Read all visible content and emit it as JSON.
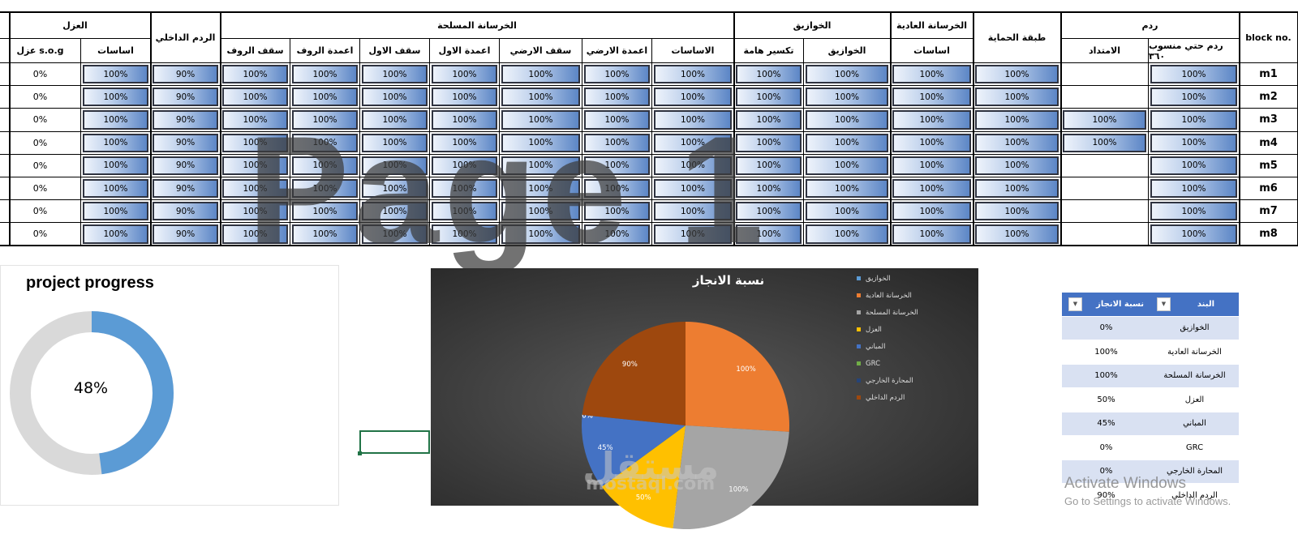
{
  "grid": {
    "groups": {
      "insulation": "العزل",
      "internal_backfill": "الردم الداخلي",
      "reinforced_concrete": "الخرسانة المسلحة",
      "lintels": "الخوازيق",
      "plain_concrete": "الخرسانة العادية",
      "protection_layer": "طبقة الحماية",
      "backfill": "ردم",
      "block_no": "block no."
    },
    "subheaders": {
      "sog_insulation": "عزل s.o.g",
      "foundations_ins": "اساسات",
      "roof_slab": "سقف الروف",
      "roof_columns": "اعمدة الروف",
      "first_slab": "سقف الاول",
      "first_columns": "اعمدة الاول",
      "ground_slab": "سقف الارضي",
      "ground_columns": "اعمدة الارضي",
      "rc_foundations": "الاساسات",
      "pile_breaking": "تكسير هامة",
      "piles": "الخوازيق",
      "pc_foundations": "اساسات",
      "extension": "الامتداد",
      "backfill_360": "ردم حتي منسوب ٣٦٠"
    },
    "rows": [
      {
        "block": "m1",
        "sog": "0%",
        "ins": "100%",
        "int": "90%",
        "roof_slab": "100%",
        "roof_col": "100%",
        "first_slab": "100%",
        "first_col": "100%",
        "ground_slab": "100%",
        "ground_col": "100%",
        "rc_found": "100%",
        "pile_break": "100%",
        "piles": "100%",
        "pc_found": "100%",
        "prot": "100%",
        "ext": "",
        "bf360": "100%"
      },
      {
        "block": "m2",
        "sog": "0%",
        "ins": "100%",
        "int": "90%",
        "roof_slab": "100%",
        "roof_col": "100%",
        "first_slab": "100%",
        "first_col": "100%",
        "ground_slab": "100%",
        "ground_col": "100%",
        "rc_found": "100%",
        "pile_break": "100%",
        "piles": "100%",
        "pc_found": "100%",
        "prot": "100%",
        "ext": "",
        "bf360": "100%"
      },
      {
        "block": "m3",
        "sog": "0%",
        "ins": "100%",
        "int": "90%",
        "roof_slab": "100%",
        "roof_col": "100%",
        "first_slab": "100%",
        "first_col": "100%",
        "ground_slab": "100%",
        "ground_col": "100%",
        "rc_found": "100%",
        "pile_break": "100%",
        "piles": "100%",
        "pc_found": "100%",
        "prot": "100%",
        "ext": "100%",
        "bf360": "100%"
      },
      {
        "block": "m4",
        "sog": "0%",
        "ins": "100%",
        "int": "90%",
        "roof_slab": "100%",
        "roof_col": "100%",
        "first_slab": "100%",
        "first_col": "100%",
        "ground_slab": "100%",
        "ground_col": "100%",
        "rc_found": "100%",
        "pile_break": "100%",
        "piles": "100%",
        "pc_found": "100%",
        "prot": "100%",
        "ext": "100%",
        "bf360": "100%"
      },
      {
        "block": "m5",
        "sog": "0%",
        "ins": "100%",
        "int": "90%",
        "roof_slab": "100%",
        "roof_col": "100%",
        "first_slab": "100%",
        "first_col": "100%",
        "ground_slab": "100%",
        "ground_col": "100%",
        "rc_found": "100%",
        "pile_break": "100%",
        "piles": "100%",
        "pc_found": "100%",
        "prot": "100%",
        "ext": "",
        "bf360": "100%"
      },
      {
        "block": "m6",
        "sog": "0%",
        "ins": "100%",
        "int": "90%",
        "roof_slab": "100%",
        "roof_col": "100%",
        "first_slab": "100%",
        "first_col": "100%",
        "ground_slab": "100%",
        "ground_col": "100%",
        "rc_found": "100%",
        "pile_break": "100%",
        "piles": "100%",
        "pc_found": "100%",
        "prot": "100%",
        "ext": "",
        "bf360": "100%"
      },
      {
        "block": "m7",
        "sog": "0%",
        "ins": "100%",
        "int": "90%",
        "roof_slab": "100%",
        "roof_col": "100%",
        "first_slab": "100%",
        "first_col": "100%",
        "ground_slab": "100%",
        "ground_col": "100%",
        "rc_found": "100%",
        "pile_break": "100%",
        "piles": "100%",
        "pc_found": "100%",
        "prot": "100%",
        "ext": "",
        "bf360": "100%"
      },
      {
        "block": "m8",
        "sog": "0%",
        "ins": "100%",
        "int": "90%",
        "roof_slab": "100%",
        "roof_col": "100%",
        "first_slab": "100%",
        "first_col": "100%",
        "ground_slab": "100%",
        "ground_col": "100%",
        "rc_found": "100%",
        "pile_break": "100%",
        "piles": "100%",
        "pc_found": "100%",
        "prot": "100%",
        "ext": "",
        "bf360": "100%"
      }
    ]
  },
  "watermark": "Page 1",
  "progress": {
    "title": "project progress",
    "value_label": "48%",
    "fraction": 0.48,
    "fill_color": "#5b9bd5",
    "track_color": "#d9d9d9"
  },
  "pie": {
    "title": "نسبة الانجاز",
    "slices": [
      {
        "name": "الخوازيق",
        "label": "0%",
        "color": "#5b9bd5"
      },
      {
        "name": "الخرسانة العادية",
        "label": "100%",
        "color": "#ed7d31"
      },
      {
        "name": "الخرسانة المسلحة",
        "label": "100%",
        "color": "#a5a5a5"
      },
      {
        "name": "العزل",
        "label": "50%",
        "color": "#ffc000"
      },
      {
        "name": "المباني",
        "label": "45%",
        "color": "#4472c4"
      },
      {
        "name": "GRC",
        "label": "0%",
        "color": "#70ad47"
      },
      {
        "name": "المحارة الخارجي",
        "label": "0%",
        "color": "#264478"
      },
      {
        "name": "الردم الداخلي",
        "label": "90%",
        "color": "#9e480e"
      }
    ]
  },
  "chart_data": {
    "type": "pie",
    "title": "نسبة الانجاز",
    "categories": [
      "الخوازيق",
      "الخرسانة العادية",
      "الخرسانة المسلحة",
      "العزل",
      "المباني",
      "GRC",
      "المحارة الخارجي",
      "الردم الداخلي"
    ],
    "values": [
      0,
      100,
      100,
      50,
      45,
      0,
      0,
      90
    ],
    "legend": "right"
  },
  "mostaql": {
    "arabic": "مستقل",
    "latin": "mostaql.com"
  },
  "summary": {
    "header_item": "البند",
    "header_pct": "نسبة الانجاز",
    "dropdown_glyph": "▼",
    "rows": [
      {
        "item": "الخوازيق",
        "pct": "0%"
      },
      {
        "item": "الخرسانة العادية",
        "pct": "100%"
      },
      {
        "item": "الخرسانة المسلحة",
        "pct": "100%"
      },
      {
        "item": "العزل",
        "pct": "50%"
      },
      {
        "item": "المباني",
        "pct": "45%"
      },
      {
        "item": "GRC",
        "pct": "0%"
      },
      {
        "item": "المحارة الخارجي",
        "pct": "0%"
      },
      {
        "item": "الردم الداخلي",
        "pct": "90%"
      }
    ]
  },
  "activate": {
    "title": "Activate Windows",
    "sub": "Go to Settings to activate Windows."
  }
}
